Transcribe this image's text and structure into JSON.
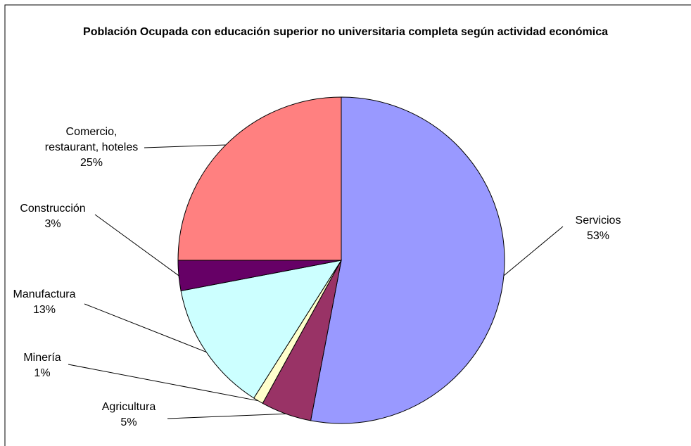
{
  "chart_data": {
    "type": "pie",
    "title": "Población Ocupada con educación superior no universitaria completa según actividad económica",
    "categories": [
      "Servicios",
      "Agricultura",
      "Minería",
      "Manufactura",
      "Construcción",
      "Comercio, restaurant, hoteles"
    ],
    "values": [
      53,
      5,
      1,
      13,
      3,
      25
    ],
    "value_labels": [
      "53%",
      "5%",
      "1%",
      "13%",
      "3%",
      "25%"
    ],
    "colors": [
      "#9999ff",
      "#993366",
      "#ffffcc",
      "#ccffff",
      "#660066",
      "#ff8080"
    ]
  }
}
